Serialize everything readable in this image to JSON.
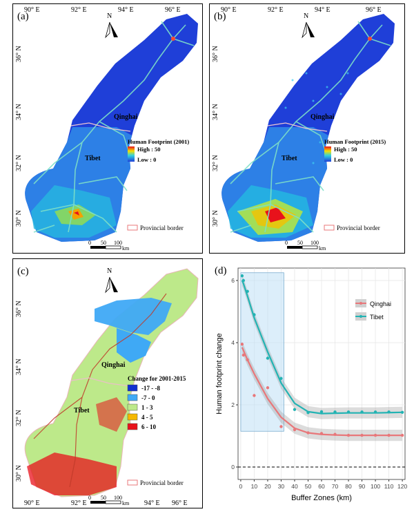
{
  "panels": {
    "a": {
      "label": "(a)",
      "legend_title": "Human Footprint (2001)",
      "legend_high": "High : 50",
      "legend_low": "Low : 0",
      "region_north": "Qinghai",
      "region_south": "Tibet",
      "border_legend": "Provincial border",
      "lon_ticks": [
        "90° E",
        "92° E",
        "94° E",
        "96° E"
      ],
      "lat_ticks": [
        "36° N",
        "34° N",
        "32° N",
        "30° N"
      ],
      "scale": [
        "0",
        "50",
        "100"
      ],
      "scale_unit": "km",
      "north": "N"
    },
    "b": {
      "label": "(b)",
      "legend_title": "Human Footprint (2015)",
      "legend_high": "High : 50",
      "legend_low": "Low : 0",
      "region_north": "Qinghai",
      "region_south": "Tibet",
      "border_legend": "Provincial border",
      "lon_ticks": [
        "90° E",
        "92° E",
        "94° E",
        "96° E"
      ],
      "lat_ticks": [
        "36° N",
        "34° N",
        "32° N",
        "30° N"
      ],
      "scale": [
        "0",
        "50",
        "100"
      ],
      "scale_unit": "km",
      "north": "N"
    },
    "c": {
      "label": "(c)",
      "legend_title": "Change for 2001-2015",
      "classes": [
        {
          "label": "-17 - -8",
          "color": "#1030d0"
        },
        {
          "label": "-7 - 0",
          "color": "#3fa9f5"
        },
        {
          "label": "1 - 3",
          "color": "#bde98a"
        },
        {
          "label": "4 - 5",
          "color": "#f5b800"
        },
        {
          "label": "6 - 10",
          "color": "#e8121b"
        }
      ],
      "region_north": "Qinghai",
      "region_south": "Tibet",
      "border_legend": "Provincial border",
      "lon_ticks": [
        "90° E",
        "92° E",
        "94° E",
        "96° E"
      ],
      "lat_ticks": [
        "36° N",
        "34° N",
        "32° N",
        "30° N"
      ],
      "scale": [
        "0",
        "50",
        "100"
      ],
      "scale_unit": "km",
      "north": "N"
    },
    "d": {
      "label": "(d)"
    }
  },
  "colors": {
    "map_blue": "#1f3fd8",
    "qinghai": "#e8777a",
    "tibet": "#22b3b3",
    "highlight": "#bfe0f5"
  },
  "chart_data": {
    "type": "scatter",
    "xlabel": "Buffer Zones (km)",
    "ylabel": "Human footprint change",
    "xlim": [
      -2,
      122
    ],
    "ylim": [
      -0.4,
      6.4
    ],
    "xticks": [
      0,
      10,
      20,
      30,
      40,
      50,
      60,
      70,
      80,
      90,
      100,
      110,
      120
    ],
    "yticks": [
      0,
      2,
      4,
      6
    ],
    "reference_line_y": 0,
    "highlight_x": [
      0,
      32
    ],
    "highlight_y": [
      1.15,
      6.25
    ],
    "legend_position": "top-right",
    "series": [
      {
        "name": "Qinghai",
        "x": [
          1,
          2,
          5,
          10,
          20,
          30,
          40,
          50,
          60,
          70,
          80,
          90,
          100,
          110,
          120
        ],
        "y": [
          3.95,
          3.6,
          3.45,
          2.3,
          2.55,
          1.3,
          1.2,
          1.1,
          1.08,
          1.05,
          1.02,
          1.02,
          1.02,
          1.02,
          1.02
        ],
        "fit": [
          3.85,
          3.75,
          3.45,
          3.0,
          2.2,
          1.6,
          1.25,
          1.1,
          1.05,
          1.03,
          1.02,
          1.02,
          1.02,
          1.02,
          1.02
        ]
      },
      {
        "name": "Tibet",
        "x": [
          1,
          2,
          5,
          10,
          20,
          30,
          40,
          50,
          60,
          70,
          80,
          90,
          100,
          110,
          120
        ],
        "y": [
          6.15,
          6.0,
          5.65,
          4.9,
          3.5,
          2.85,
          1.85,
          1.75,
          1.78,
          1.77,
          1.77,
          1.77,
          1.77,
          1.77,
          1.76
        ],
        "fit": [
          6.0,
          5.9,
          5.5,
          4.8,
          3.7,
          2.7,
          2.05,
          1.78,
          1.72,
          1.73,
          1.74,
          1.74,
          1.74,
          1.75,
          1.76
        ]
      }
    ]
  }
}
